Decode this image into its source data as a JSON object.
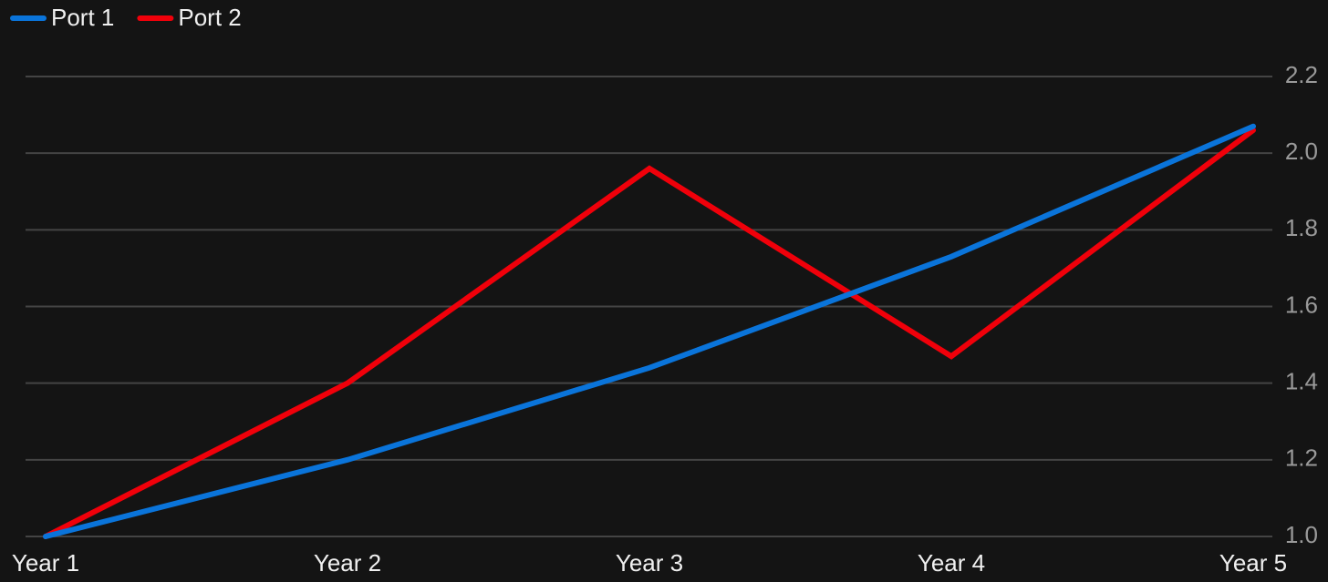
{
  "chart_data": {
    "type": "line",
    "categories": [
      "Year 1",
      "Year 2",
      "Year 3",
      "Year 4",
      "Year 5"
    ],
    "series": [
      {
        "name": "Port 1",
        "color": "#0a74da",
        "values": [
          1.0,
          1.2,
          1.44,
          1.73,
          2.07
        ]
      },
      {
        "name": "Port 2",
        "color": "#f0000a",
        "values": [
          1.0,
          1.4,
          1.96,
          1.47,
          2.06
        ]
      }
    ],
    "ylim": [
      1.0,
      2.2
    ],
    "yticks": [
      {
        "value": 1,
        "label": "1.0"
      },
      1.2,
      1.4,
      1.6,
      1.8,
      {
        "value": 2,
        "label": "2.0"
      },
      2.2
    ],
    "grid": true,
    "legend": "top-left"
  }
}
